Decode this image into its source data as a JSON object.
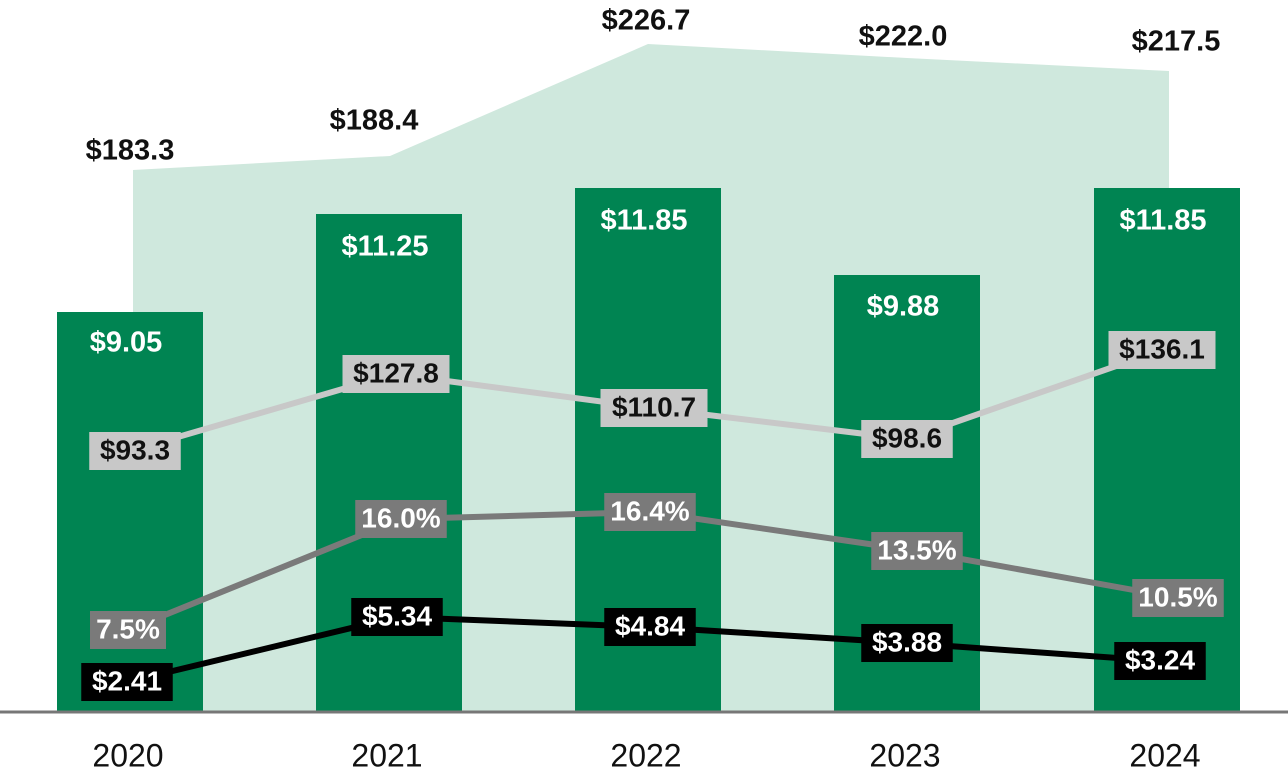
{
  "chart_data": {
    "type": "bar",
    "title": "",
    "xlabel": "",
    "ylabel": "",
    "categories": [
      "2020",
      "2021",
      "2022",
      "2023",
      "2024"
    ],
    "colors": {
      "area": "#cfe8dd",
      "bar": "#008452",
      "bar_label": "#ffffff",
      "line_light": "#c8c8c8",
      "line_mid": "#7a7a7a",
      "line_dark": "#000000",
      "axis": "#777777",
      "text": "#111111"
    },
    "area_series": {
      "name": "area",
      "values": [
        183.3,
        188.4,
        226.7,
        222.0,
        217.5
      ],
      "labels": [
        "$183.3",
        "$188.4",
        "$226.7",
        "$222.0",
        "$217.5"
      ]
    },
    "bar_series": {
      "name": "bars",
      "values": [
        9.05,
        11.25,
        11.85,
        9.88,
        11.85
      ],
      "labels": [
        "$9.05",
        "$11.25",
        "$11.85",
        "$9.88",
        "$11.85"
      ]
    },
    "line_series": [
      {
        "id": "light",
        "values": [
          93.3,
          127.8,
          110.7,
          98.6,
          136.1
        ],
        "labels": [
          "$93.3",
          "$127.8",
          "$110.7",
          "$98.6",
          "$136.1"
        ]
      },
      {
        "id": "mid",
        "values": [
          7.5,
          16.0,
          16.4,
          13.5,
          10.5
        ],
        "labels": [
          "7.5%",
          "16.0%",
          "16.4%",
          "13.5%",
          "10.5%"
        ]
      },
      {
        "id": "dark",
        "values": [
          2.41,
          5.34,
          4.84,
          3.88,
          3.24
        ],
        "labels": [
          "$2.41",
          "$5.34",
          "$4.84",
          "$3.88",
          "$3.24"
        ]
      }
    ]
  }
}
